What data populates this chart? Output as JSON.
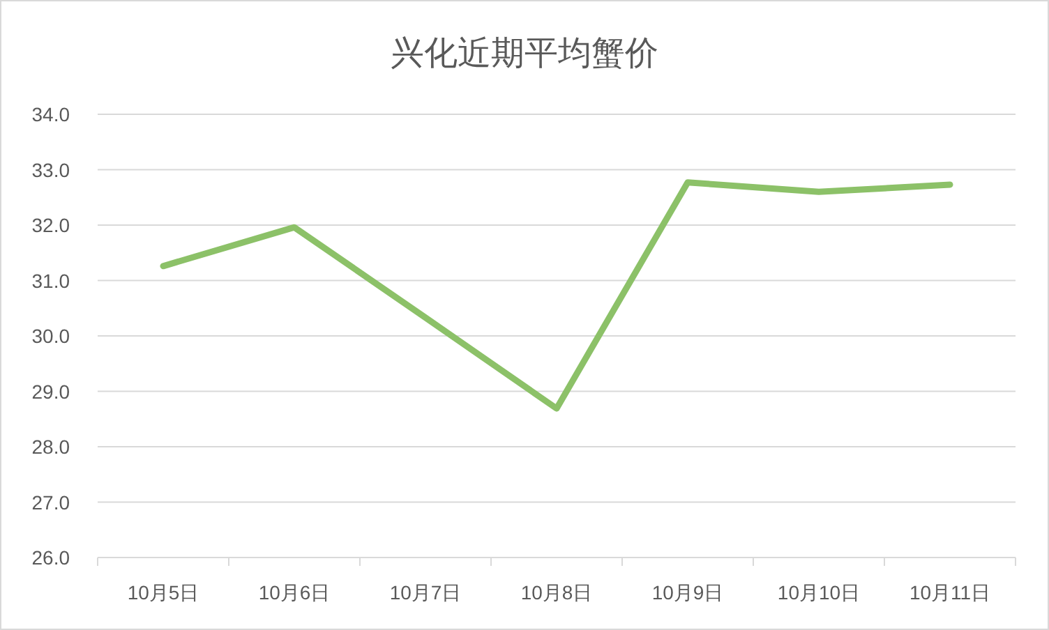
{
  "chart_data": {
    "type": "line",
    "title": "兴化近期平均蟹价",
    "categories": [
      "10月5日",
      "10月6日",
      "10月7日",
      "10月8日",
      "10月9日",
      "10月10日",
      "10月11日"
    ],
    "series": [
      {
        "color": "#8cc168",
        "values": [
          31.26,
          31.96,
          30.33,
          28.69,
          32.77,
          32.6,
          32.73
        ]
      }
    ],
    "ylim": [
      26,
      34
    ],
    "yticks": [
      {
        "value": 26,
        "label": "26.0"
      },
      {
        "value": 27,
        "label": "27.0"
      },
      {
        "value": 28,
        "label": "28.0"
      },
      {
        "value": 29,
        "label": "29.0"
      },
      {
        "value": 30,
        "label": "30.0"
      },
      {
        "value": 31,
        "label": "31.0"
      },
      {
        "value": 32,
        "label": "32.0"
      },
      {
        "value": 33,
        "label": "33.0"
      },
      {
        "value": 34,
        "label": "34.0"
      }
    ],
    "grid": "y",
    "marker": "none",
    "line_style": "solid"
  }
}
